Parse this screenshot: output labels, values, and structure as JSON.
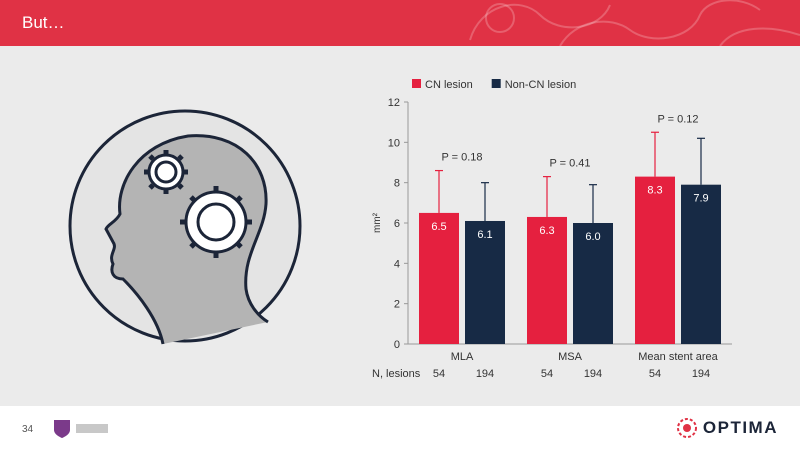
{
  "slide": {
    "title": "But…",
    "page_number": "34",
    "brand_name": "OPTIMA"
  },
  "colors": {
    "header": "#e03245",
    "cn": "#e5203f",
    "noncn": "#172a45",
    "background": "#ebebeb"
  },
  "icons": {
    "illustration": "head-with-gears-icon",
    "partner": "partner-logo",
    "brand": "optima-logo-icon"
  },
  "chart_data": {
    "type": "bar",
    "categories": [
      "MLA",
      "MSA",
      "Mean stent area"
    ],
    "series": [
      {
        "name": "CN lesion",
        "values": [
          6.5,
          6.3,
          8.3
        ],
        "error_upper": [
          8.6,
          8.3,
          10.5
        ],
        "labels": [
          "6.5",
          "6.3",
          "8.3"
        ],
        "color": "#e5203f"
      },
      {
        "name": "Non-CN lesion",
        "values": [
          6.1,
          6.0,
          7.9
        ],
        "error_upper": [
          8.0,
          7.9,
          10.2
        ],
        "labels": [
          "6.1",
          "6.0",
          "7.9"
        ],
        "color": "#172a45"
      }
    ],
    "p_values": [
      "P = 0.18",
      "P = 0.41",
      "P = 0.12"
    ],
    "ylabel": "mm²",
    "ylim": [
      0,
      12
    ],
    "yticks": [
      "0",
      "2",
      "4",
      "6",
      "8",
      "10",
      "12"
    ],
    "legend_position": "top",
    "grid": false,
    "n_row": {
      "label": "N, lesions",
      "values": [
        [
          "54",
          "194"
        ],
        [
          "54",
          "194"
        ],
        [
          "54",
          "194"
        ]
      ]
    }
  }
}
